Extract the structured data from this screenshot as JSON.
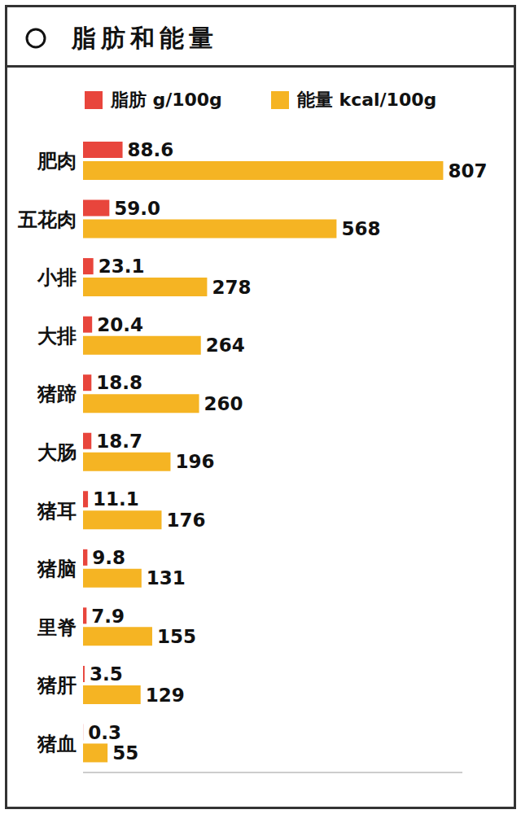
{
  "chart_data": {
    "type": "bar",
    "title": "脂肪和能量",
    "orientation": "horizontal",
    "categories": [
      "肥肉",
      "五花肉",
      "小排",
      "大排",
      "猪蹄",
      "大肠",
      "猪耳",
      "猪脑",
      "里脊",
      "猪肝",
      "猪血"
    ],
    "series": [
      {
        "name": "脂肪 g/100g",
        "color": "#e8453c",
        "values": [
          88.6,
          59.0,
          23.1,
          20.4,
          18.8,
          18.7,
          11.1,
          9.8,
          7.9,
          3.5,
          0.3
        ],
        "value_labels": [
          "88.6",
          "59.0",
          "23.1",
          "20.4",
          "18.8",
          "18.7",
          "11.1",
          "9.8",
          "7.9",
          "3.5",
          "0.3"
        ]
      },
      {
        "name": "能量 kcal/100g",
        "color": "#f5b423",
        "values": [
          807,
          568,
          278,
          264,
          260,
          196,
          176,
          131,
          155,
          129,
          55
        ]
      }
    ],
    "xlim": [
      0,
      850
    ],
    "tick_labels": "y",
    "data_labels": true,
    "legend": "top",
    "grid": false
  }
}
